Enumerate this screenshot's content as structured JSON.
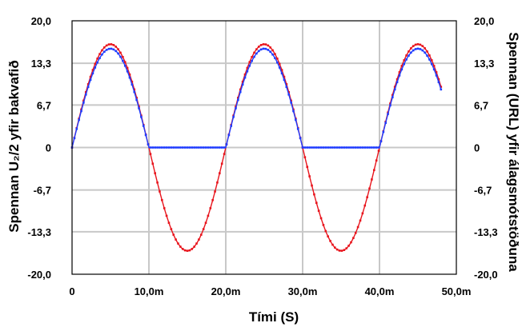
{
  "chart_data": {
    "type": "line",
    "xlabel": "Tími (S)",
    "ylabel_left": "Spennan U₂/2 yfir bakvafið",
    "ylabel_right": "Spennan (URL) yfir álagsmótstöðuna",
    "xlim": [
      0,
      0.05
    ],
    "ylim": [
      -20,
      20
    ],
    "x_ticks": [
      0,
      0.01,
      0.02,
      0.03,
      0.04,
      0.05
    ],
    "x_tick_labels": [
      "0",
      "10,0m",
      "20,0m",
      "30,0m",
      "40,0m",
      "50,0m"
    ],
    "y_ticks": [
      20,
      13.3,
      6.7,
      0,
      -6.7,
      -13.3,
      -20
    ],
    "y_tick_labels": [
      "20,0",
      "13,3",
      "6,7",
      "0",
      "-6,7",
      "-13,3",
      "-20,0"
    ],
    "grid": true,
    "series": [
      {
        "color": "#e8141c",
        "shape": "sine",
        "amplitude": 16.3,
        "frequency_hz": 50,
        "x_end": 0.048,
        "end_value": 10.5
      },
      {
        "color": "#1f3cff",
        "shape": "half-wave-rectified sine",
        "amplitude": 15.6,
        "frequency_hz": 50,
        "x_end": 0.048,
        "end_value": 9.5
      }
    ]
  }
}
